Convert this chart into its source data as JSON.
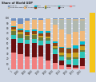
{
  "title": "Share of World GDP",
  "bg": "#cdd5e3",
  "years": [
    "1",
    "1000",
    "1500",
    "1600",
    "1700",
    "1820",
    "1870",
    "1913",
    "1950",
    "1973",
    "2003"
  ],
  "categories": [
    "India",
    "China",
    "Rest of Asia",
    "Africa",
    "Latin America",
    "E. Europe",
    "Japan",
    "W. Europe",
    "USA",
    "Other New World",
    "Other W."
  ],
  "colors": [
    "#f4a0a0",
    "#8b1a1a",
    "#20b2aa",
    "#556b2f",
    "#daa520",
    "#a0522d",
    "#00bcd4",
    "#f4c896",
    "#b0b0b0",
    "#d2b48c",
    "#6a8fbf"
  ],
  "data": {
    "India": [
      32.9,
      28.9,
      24.5,
      22.4,
      24.4,
      16.0,
      12.1,
      7.5,
      4.2,
      3.1,
      5.4
    ],
    "China": [
      26.0,
      22.7,
      24.9,
      29.0,
      22.3,
      32.9,
      17.1,
      8.8,
      4.6,
      4.6,
      15.1
    ],
    "Rest of Asia": [
      8.0,
      8.0,
      7.1,
      7.8,
      9.2,
      7.2,
      8.6,
      8.6,
      10.0,
      12.4,
      13.6
    ],
    "Africa": [
      7.6,
      8.0,
      7.8,
      7.5,
      6.3,
      4.5,
      4.1,
      2.9,
      3.6,
      3.4,
      3.1
    ],
    "Latin America": [
      3.6,
      5.0,
      2.9,
      1.9,
      2.2,
      2.1,
      2.5,
      4.5,
      7.8,
      8.7,
      7.7
    ],
    "E. Europe": [
      4.0,
      4.0,
      5.9,
      5.7,
      5.3,
      8.8,
      7.0,
      8.8,
      9.0,
      7.0,
      3.3
    ],
    "Japan": [
      1.0,
      2.7,
      3.1,
      2.9,
      4.1,
      3.0,
      2.3,
      2.6,
      3.0,
      7.8,
      6.6
    ],
    "W. Europe": [
      11.0,
      8.7,
      17.8,
      19.8,
      22.5,
      23.6,
      33.6,
      33.5,
      26.2,
      25.6,
      19.2
    ],
    "USA": [
      0.0,
      0.0,
      0.3,
      0.3,
      0.1,
      1.8,
      8.9,
      18.9,
      27.3,
      22.1,
      20.7
    ],
    "Other New World": [
      0.5,
      0.5,
      0.5,
      0.5,
      0.5,
      0.5,
      1.0,
      1.5,
      2.5,
      3.0,
      3.5
    ],
    "Other W.": [
      5.4,
      11.5,
      5.2,
      2.2,
      3.1,
      0.6,
      2.8,
      2.4,
      1.8,
      2.3,
      1.8
    ]
  },
  "category_colors": {
    "India": "#f28080",
    "China": "#6b1010",
    "Rest of Asia": "#2ec4b6",
    "Africa": "#6b7c3a",
    "Latin America": "#c8a020",
    "E. Europe": "#8b4513",
    "Japan": "#00bcd4",
    "W. Europe": "#f0b87a",
    "USA": "#b0b8b0",
    "Other New World": "#c8b898",
    "Other W.": "#7090c0"
  },
  "ylim": [
    0,
    100
  ],
  "yticks": [
    0,
    10,
    20,
    30,
    40,
    50,
    60,
    70,
    80,
    90,
    100
  ]
}
